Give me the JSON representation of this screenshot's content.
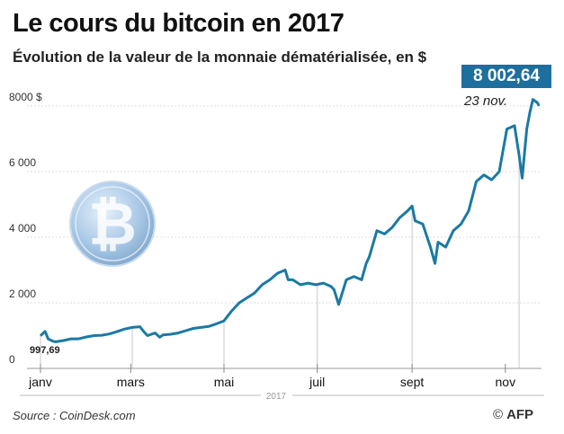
{
  "title": "Le cours du bitcoin en 2017",
  "subtitle": "Évolution de la valeur de la monnaie dématérialisée, en $",
  "source": "Source : CoinDesk.com",
  "credit": "AFP",
  "copyright_symbol": "©",
  "colors": {
    "line": "#1b7aa3",
    "accent_box": "#1e6e9e",
    "grid": "#dddddd"
  },
  "icons": [
    "bitcoin-coin-icon",
    "afp-logo-icon"
  ],
  "chart_data": {
    "type": "line",
    "title": "Le cours du bitcoin en 2017",
    "subtitle": "Évolution de la valeur de la monnaie dématérialisée, en $",
    "xlabel": "2017",
    "ylabel": "",
    "y_unit": "$",
    "ylim": [
      0,
      8300
    ],
    "y_ticks": [
      0,
      2000,
      4000,
      6000,
      8000
    ],
    "y_tick_labels": [
      "0",
      "2 000",
      "4 000",
      "6 000",
      "8000 $"
    ],
    "x_tick_labels": [
      "janv",
      "mars",
      "mai",
      "juil",
      "sept",
      "nov"
    ],
    "x_tick_days": [
      0,
      59,
      120,
      181,
      243,
      304
    ],
    "grid": true,
    "first_value_label": "997,69",
    "last_value_label": "8 002,64",
    "last_date_label": "23 nov.",
    "series": [
      {
        "x_day": [
          0,
          3,
          4,
          5,
          8,
          10,
          15,
          20,
          25,
          30,
          35,
          40,
          45,
          50,
          55,
          60,
          65,
          68,
          70,
          75,
          78,
          80,
          85,
          90,
          95,
          100,
          105,
          110,
          115,
          120,
          125,
          130,
          135,
          140,
          145,
          150,
          155,
          160,
          162,
          165,
          170,
          175,
          180,
          185,
          190,
          192,
          195,
          200,
          205,
          210,
          213,
          215,
          220,
          225,
          230,
          235,
          240,
          243,
          245,
          250,
          255,
          258,
          260,
          265,
          270,
          275,
          280,
          285,
          290,
          295,
          300,
          305,
          310,
          313,
          315,
          318,
          320,
          322,
          325,
          326
        ],
        "values": [
          997.69,
          1130,
          1020,
          900,
          830,
          810,
          850,
          900,
          900,
          960,
          1000,
          1010,
          1050,
          1120,
          1200,
          1250,
          1270,
          1100,
          1000,
          1080,
          950,
          1020,
          1040,
          1080,
          1150,
          1220,
          1250,
          1280,
          1360,
          1450,
          1750,
          2000,
          2150,
          2300,
          2550,
          2700,
          2900,
          3000,
          2700,
          2700,
          2550,
          2600,
          2550,
          2600,
          2500,
          2400,
          1950,
          2700,
          2800,
          2700,
          3200,
          3400,
          4200,
          4100,
          4300,
          4600,
          4800,
          4950,
          4500,
          4400,
          3700,
          3200,
          3850,
          3700,
          4200,
          4400,
          4800,
          5700,
          5900,
          5750,
          6000,
          7300,
          7400,
          6500,
          5800,
          7300,
          7800,
          8200,
          8100,
          8002.64
        ]
      }
    ]
  }
}
